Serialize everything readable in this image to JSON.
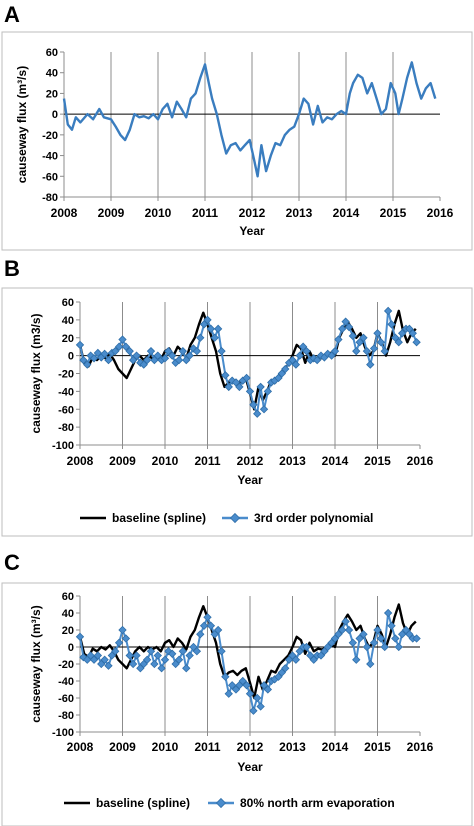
{
  "chart_data": [
    {
      "panel": "A",
      "type": "line",
      "xlabel": "Year",
      "ylabel": "causeway flux (m³/s)",
      "ylim": [
        -80,
        60
      ],
      "yticks": [
        60,
        40,
        20,
        0,
        -20,
        -40,
        -60,
        -80
      ],
      "xlim": [
        2008,
        2016
      ],
      "xticks": [
        "2008",
        "2009",
        "2010",
        "2011",
        "2012",
        "2013",
        "2014",
        "2015",
        "2016"
      ],
      "grid": "vertical",
      "zero_line": true,
      "legend": null,
      "series": [
        {
          "color": "#3a7dbf",
          "marker": "none",
          "x": [
            2008.0,
            2008.08,
            2008.17,
            2008.25,
            2008.35,
            2008.5,
            2008.62,
            2008.75,
            2008.85,
            2009.0,
            2009.1,
            2009.2,
            2009.3,
            2009.4,
            2009.5,
            2009.6,
            2009.7,
            2009.8,
            2009.9,
            2010.0,
            2010.1,
            2010.2,
            2010.3,
            2010.4,
            2010.5,
            2010.6,
            2010.7,
            2010.8,
            2010.9,
            2011.0,
            2011.08,
            2011.15,
            2011.25,
            2011.35,
            2011.45,
            2011.55,
            2011.65,
            2011.75,
            2011.85,
            2011.95,
            2012.05,
            2012.12,
            2012.2,
            2012.3,
            2012.4,
            2012.5,
            2012.6,
            2012.7,
            2012.8,
            2012.9,
            2013.0,
            2013.1,
            2013.2,
            2013.3,
            2013.4,
            2013.5,
            2013.6,
            2013.7,
            2013.8,
            2013.9,
            2014.0,
            2014.08,
            2014.15,
            2014.25,
            2014.35,
            2014.45,
            2014.55,
            2014.65,
            2014.75,
            2014.85,
            2014.95,
            2015.05,
            2015.12,
            2015.2,
            2015.3,
            2015.4,
            2015.5,
            2015.6,
            2015.7,
            2015.8,
            2015.9
          ],
          "y": [
            15,
            -10,
            -15,
            -3,
            -8,
            0,
            -5,
            5,
            -3,
            -5,
            -12,
            -20,
            -25,
            -15,
            0,
            -3,
            -2,
            -4,
            0,
            -5,
            5,
            10,
            -3,
            12,
            5,
            -3,
            15,
            20,
            35,
            48,
            30,
            15,
            0,
            -20,
            -38,
            -30,
            -28,
            -35,
            -30,
            -25,
            -45,
            -60,
            -30,
            -55,
            -40,
            -28,
            -30,
            -20,
            -15,
            -12,
            0,
            15,
            10,
            -10,
            8,
            -8,
            -3,
            -5,
            0,
            3,
            0,
            20,
            30,
            38,
            35,
            20,
            30,
            15,
            0,
            5,
            30,
            20,
            0,
            15,
            35,
            50,
            30,
            15,
            25,
            30,
            15
          ]
        }
      ]
    },
    {
      "panel": "B",
      "type": "line",
      "xlabel": "Year",
      "ylabel": "causeway flux (m3/s)",
      "ylim": [
        -100,
        60
      ],
      "yticks": [
        60,
        40,
        20,
        0,
        -20,
        -40,
        -60,
        -80,
        -100
      ],
      "xlim": [
        2008,
        2016
      ],
      "xticks": [
        "2008",
        "2009",
        "2010",
        "2011",
        "2012",
        "2013",
        "2014",
        "2015",
        "2016"
      ],
      "grid": "vertical",
      "zero_line": true,
      "legend": "bottom",
      "series": [
        {
          "name": "baseline (spline)",
          "color": "#000000",
          "marker": "none",
          "x": [
            2008.0,
            2008.1,
            2008.2,
            2008.3,
            2008.4,
            2008.5,
            2008.6,
            2008.7,
            2008.8,
            2008.9,
            2009.0,
            2009.1,
            2009.2,
            2009.3,
            2009.4,
            2009.5,
            2009.6,
            2009.7,
            2009.8,
            2009.9,
            2010.0,
            2010.1,
            2010.2,
            2010.3,
            2010.4,
            2010.5,
            2010.6,
            2010.7,
            2010.8,
            2010.9,
            2011.0,
            2011.1,
            2011.2,
            2011.3,
            2011.4,
            2011.5,
            2011.6,
            2011.7,
            2011.8,
            2011.9,
            2012.0,
            2012.1,
            2012.2,
            2012.3,
            2012.4,
            2012.5,
            2012.6,
            2012.7,
            2012.8,
            2012.9,
            2013.0,
            2013.1,
            2013.2,
            2013.3,
            2013.4,
            2013.5,
            2013.6,
            2013.7,
            2013.8,
            2013.9,
            2014.0,
            2014.1,
            2014.2,
            2014.3,
            2014.4,
            2014.5,
            2014.6,
            2014.7,
            2014.8,
            2014.9,
            2015.0,
            2015.1,
            2015.2,
            2015.3,
            2015.4,
            2015.5,
            2015.6,
            2015.7,
            2015.8,
            2015.9
          ],
          "y": [
            12,
            -8,
            -12,
            -2,
            -5,
            0,
            -3,
            2,
            -5,
            -15,
            -20,
            -25,
            -15,
            -5,
            0,
            -5,
            0,
            -3,
            0,
            -5,
            5,
            8,
            0,
            10,
            5,
            -3,
            12,
            20,
            35,
            48,
            35,
            20,
            5,
            -20,
            -35,
            -30,
            -28,
            -33,
            -28,
            -25,
            -42,
            -60,
            -35,
            -50,
            -40,
            -28,
            -30,
            -20,
            -15,
            -10,
            0,
            12,
            8,
            -8,
            5,
            -5,
            -2,
            -3,
            0,
            3,
            0,
            20,
            30,
            38,
            30,
            20,
            25,
            10,
            0,
            5,
            25,
            15,
            0,
            15,
            35,
            50,
            28,
            15,
            25,
            30
          ]
        },
        {
          "name": "3rd order polynomial",
          "color": "#4a8ccc",
          "marker": "diamond",
          "x": [
            2008.0,
            2008.08,
            2008.17,
            2008.25,
            2008.33,
            2008.42,
            2008.5,
            2008.58,
            2008.67,
            2008.75,
            2008.83,
            2008.92,
            2009.0,
            2009.08,
            2009.17,
            2009.25,
            2009.33,
            2009.42,
            2009.5,
            2009.58,
            2009.67,
            2009.75,
            2009.83,
            2009.92,
            2010.0,
            2010.08,
            2010.17,
            2010.25,
            2010.33,
            2010.42,
            2010.5,
            2010.58,
            2010.67,
            2010.75,
            2010.83,
            2010.92,
            2011.0,
            2011.08,
            2011.17,
            2011.25,
            2011.33,
            2011.42,
            2011.5,
            2011.58,
            2011.67,
            2011.75,
            2011.83,
            2011.92,
            2012.0,
            2012.08,
            2012.17,
            2012.25,
            2012.33,
            2012.42,
            2012.5,
            2012.58,
            2012.67,
            2012.75,
            2012.83,
            2012.92,
            2013.0,
            2013.08,
            2013.17,
            2013.25,
            2013.33,
            2013.42,
            2013.5,
            2013.58,
            2013.67,
            2013.75,
            2013.83,
            2013.92,
            2014.0,
            2014.08,
            2014.17,
            2014.25,
            2014.33,
            2014.42,
            2014.5,
            2014.58,
            2014.67,
            2014.75,
            2014.83,
            2014.92,
            2015.0,
            2015.08,
            2015.17,
            2015.25,
            2015.33,
            2015.42,
            2015.5,
            2015.58,
            2015.67,
            2015.75,
            2015.83,
            2015.92
          ],
          "y": [
            12,
            -5,
            -10,
            0,
            -3,
            3,
            -2,
            2,
            -5,
            3,
            5,
            10,
            18,
            10,
            5,
            -5,
            0,
            -8,
            -10,
            -5,
            5,
            -5,
            0,
            -5,
            -3,
            5,
            0,
            -8,
            -5,
            5,
            -5,
            0,
            8,
            5,
            20,
            35,
            40,
            30,
            20,
            30,
            5,
            -22,
            -35,
            -28,
            -30,
            -35,
            -28,
            -25,
            -40,
            -55,
            -65,
            -35,
            -60,
            -40,
            -30,
            -28,
            -25,
            -20,
            -15,
            -8,
            -5,
            -10,
            0,
            10,
            5,
            -5,
            -3,
            -5,
            0,
            -2,
            2,
            0,
            5,
            18,
            30,
            38,
            32,
            22,
            5,
            15,
            20,
            5,
            -10,
            8,
            25,
            15,
            5,
            50,
            35,
            20,
            15,
            25,
            30,
            30,
            25,
            15
          ]
        }
      ]
    },
    {
      "panel": "C",
      "type": "line",
      "xlabel": "Year",
      "ylabel": "causeway flux (m³/s)",
      "ylim": [
        -100,
        60
      ],
      "yticks": [
        60,
        40,
        20,
        0,
        -20,
        -40,
        -60,
        -80,
        -100
      ],
      "xlim": [
        2008,
        2016
      ],
      "xticks": [
        "2008",
        "2009",
        "2010",
        "2011",
        "2012",
        "2013",
        "2014",
        "2015",
        "2016"
      ],
      "grid": "vertical",
      "zero_line": true,
      "legend": "bottom",
      "series": [
        {
          "name": "baseline (spline)",
          "color": "#000000",
          "marker": "none",
          "x": [
            2008.0,
            2008.1,
            2008.2,
            2008.3,
            2008.4,
            2008.5,
            2008.6,
            2008.7,
            2008.8,
            2008.9,
            2009.0,
            2009.1,
            2009.2,
            2009.3,
            2009.4,
            2009.5,
            2009.6,
            2009.7,
            2009.8,
            2009.9,
            2010.0,
            2010.1,
            2010.2,
            2010.3,
            2010.4,
            2010.5,
            2010.6,
            2010.7,
            2010.8,
            2010.9,
            2011.0,
            2011.1,
            2011.2,
            2011.3,
            2011.4,
            2011.5,
            2011.6,
            2011.7,
            2011.8,
            2011.9,
            2012.0,
            2012.1,
            2012.2,
            2012.3,
            2012.4,
            2012.5,
            2012.6,
            2012.7,
            2012.8,
            2012.9,
            2013.0,
            2013.1,
            2013.2,
            2013.3,
            2013.4,
            2013.5,
            2013.6,
            2013.7,
            2013.8,
            2013.9,
            2014.0,
            2014.1,
            2014.2,
            2014.3,
            2014.4,
            2014.5,
            2014.6,
            2014.7,
            2014.8,
            2014.9,
            2015.0,
            2015.1,
            2015.2,
            2015.3,
            2015.4,
            2015.5,
            2015.6,
            2015.7,
            2015.8,
            2015.9
          ],
          "y": [
            12,
            -8,
            -12,
            -2,
            -5,
            0,
            -3,
            2,
            -5,
            -15,
            -20,
            -25,
            -15,
            -5,
            0,
            -5,
            0,
            -3,
            0,
            -5,
            5,
            8,
            0,
            10,
            5,
            -3,
            12,
            20,
            35,
            48,
            35,
            20,
            5,
            -20,
            -35,
            -30,
            -28,
            -33,
            -28,
            -25,
            -42,
            -60,
            -35,
            -50,
            -40,
            -28,
            -30,
            -20,
            -15,
            -10,
            0,
            12,
            8,
            -8,
            5,
            -5,
            -2,
            -3,
            0,
            3,
            0,
            20,
            30,
            38,
            30,
            20,
            25,
            10,
            0,
            5,
            25,
            15,
            0,
            15,
            35,
            50,
            28,
            15,
            25,
            30
          ]
        },
        {
          "name": "80% north arm evaporation",
          "color": "#4a8ccc",
          "marker": "diamond",
          "x": [
            2008.0,
            2008.08,
            2008.17,
            2008.25,
            2008.33,
            2008.42,
            2008.5,
            2008.58,
            2008.67,
            2008.75,
            2008.83,
            2008.92,
            2009.0,
            2009.08,
            2009.17,
            2009.25,
            2009.33,
            2009.42,
            2009.5,
            2009.58,
            2009.67,
            2009.75,
            2009.83,
            2009.92,
            2010.0,
            2010.08,
            2010.17,
            2010.25,
            2010.33,
            2010.42,
            2010.5,
            2010.58,
            2010.67,
            2010.75,
            2010.83,
            2010.92,
            2011.0,
            2011.08,
            2011.17,
            2011.25,
            2011.33,
            2011.42,
            2011.5,
            2011.58,
            2011.67,
            2011.75,
            2011.83,
            2011.92,
            2012.0,
            2012.08,
            2012.17,
            2012.25,
            2012.33,
            2012.42,
            2012.5,
            2012.58,
            2012.67,
            2012.75,
            2012.83,
            2012.92,
            2013.0,
            2013.08,
            2013.17,
            2013.25,
            2013.33,
            2013.42,
            2013.5,
            2013.58,
            2013.67,
            2013.75,
            2013.83,
            2013.92,
            2014.0,
            2014.08,
            2014.17,
            2014.25,
            2014.33,
            2014.42,
            2014.5,
            2014.58,
            2014.67,
            2014.75,
            2014.83,
            2014.92,
            2015.0,
            2015.08,
            2015.17,
            2015.25,
            2015.33,
            2015.42,
            2015.5,
            2015.58,
            2015.67,
            2015.75,
            2015.83,
            2015.92
          ],
          "y": [
            12,
            -12,
            -15,
            -10,
            -15,
            -10,
            -20,
            -15,
            -22,
            -10,
            -5,
            5,
            20,
            10,
            -10,
            -20,
            -10,
            -25,
            -20,
            -15,
            -5,
            -20,
            -10,
            -25,
            -15,
            -5,
            -8,
            -20,
            -15,
            -5,
            -25,
            -10,
            0,
            -5,
            15,
            25,
            35,
            25,
            15,
            20,
            -5,
            -35,
            -55,
            -45,
            -50,
            -45,
            -40,
            -45,
            -55,
            -75,
            -60,
            -70,
            -45,
            -50,
            -40,
            -38,
            -35,
            -30,
            -25,
            -15,
            -10,
            -15,
            -5,
            0,
            0,
            -10,
            -15,
            -10,
            -10,
            -5,
            0,
            5,
            10,
            15,
            20,
            30,
            20,
            5,
            -15,
            10,
            15,
            0,
            -20,
            5,
            20,
            10,
            0,
            40,
            25,
            10,
            0,
            15,
            20,
            15,
            10,
            10
          ]
        }
      ]
    }
  ]
}
